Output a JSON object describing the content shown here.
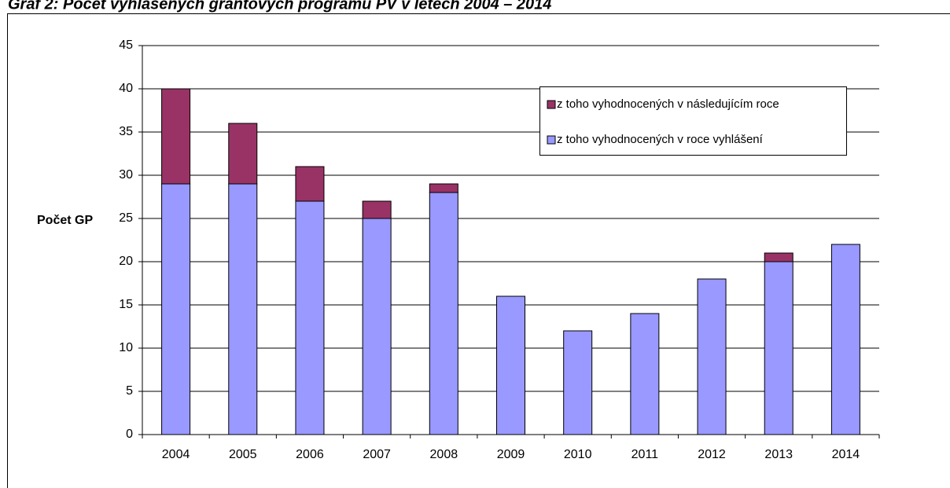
{
  "chart_data": {
    "type": "stacked_bar",
    "title": "Graf 2: Počet vyhlášených grantových programů PV v letech 2004 – 2014",
    "y_label": "Počet GP",
    "categories": [
      "2004",
      "2005",
      "2006",
      "2007",
      "2008",
      "2009",
      "2010",
      "2011",
      "2012",
      "2013",
      "2014"
    ],
    "series": [
      {
        "name": "z toho vyhodnocených v roce vyhlášení",
        "color": "#9999ff",
        "values": [
          29,
          29,
          27,
          25,
          28,
          16,
          12,
          14,
          18,
          20,
          22
        ]
      },
      {
        "name": "z toho vyhodnocených v následujícím roce",
        "color": "#993366",
        "values": [
          11,
          7,
          4,
          2,
          1,
          0,
          0,
          0,
          0,
          1,
          0
        ]
      }
    ],
    "ylim": [
      0,
      45
    ],
    "yticks": [
      0,
      5,
      10,
      15,
      20,
      25,
      30,
      35,
      40,
      45
    ],
    "grid": true
  }
}
